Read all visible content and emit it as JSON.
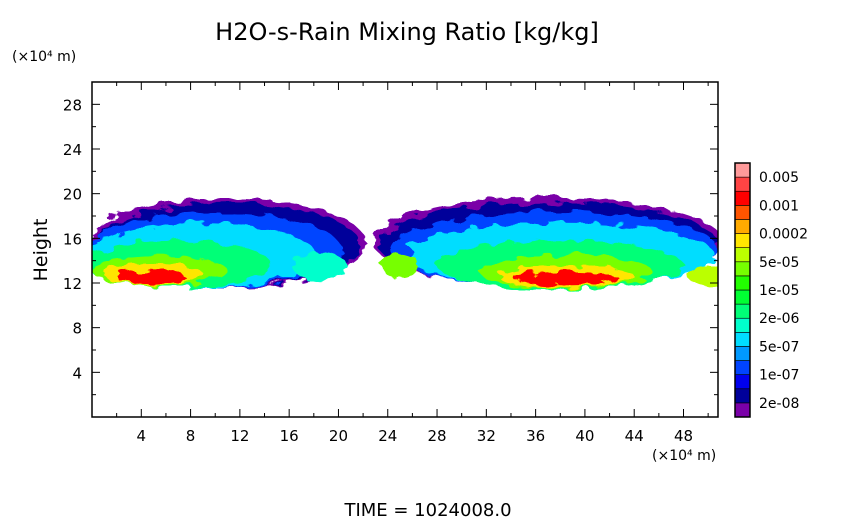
{
  "chart_data": {
    "type": "heatmap",
    "title": "H2O-s-Rain Mixing Ratio [kg/kg]",
    "xlabel": "",
    "ylabel": "Height",
    "x_unit": "(×10⁴ m)",
    "y_unit": "(×10⁴ m)",
    "xlim": [
      0,
      50.8
    ],
    "ylim": [
      0,
      30
    ],
    "x_ticks": [
      4,
      8,
      12,
      16,
      20,
      24,
      28,
      32,
      36,
      40,
      44,
      48
    ],
    "y_ticks": [
      4,
      8,
      12,
      16,
      20,
      24,
      28
    ],
    "grid": false,
    "footer": "TIME = 1024008.0",
    "colorbar": {
      "colors": [
        "#7a00a8",
        "#00009a",
        "#0000ee",
        "#0044ff",
        "#0099ff",
        "#00ddff",
        "#00ffcc",
        "#00ff77",
        "#00ff33",
        "#22ff00",
        "#77ff00",
        "#bbff00",
        "#ffe600",
        "#ffaa00",
        "#ff5500",
        "#ff0000",
        "#ff4444",
        "#ff9a9a"
      ],
      "labels": [
        "2e-08",
        "1e-07",
        "5e-07",
        "2e-06",
        "1e-05",
        "5e-05",
        "0.0002",
        "0.001",
        "0.005"
      ]
    },
    "field_blobs": [
      {
        "x": 11,
        "y": 15.6,
        "rx": 11.2,
        "ry": 4.0,
        "level": 0
      },
      {
        "x": 11,
        "y": 15.4,
        "rx": 10.8,
        "ry": 3.7,
        "level": 1
      },
      {
        "x": 10,
        "y": 15.0,
        "rx": 10.2,
        "ry": 3.4,
        "level": 3
      },
      {
        "x": 9,
        "y": 14.5,
        "rx": 9.2,
        "ry": 2.9,
        "level": 5
      },
      {
        "x": 7,
        "y": 13.7,
        "rx": 7.5,
        "ry": 2.1,
        "level": 7
      },
      {
        "x": 5.5,
        "y": 13.1,
        "rx": 5.5,
        "ry": 1.4,
        "level": 10
      },
      {
        "x": 5,
        "y": 12.8,
        "rx": 4,
        "ry": 1.0,
        "level": 12
      },
      {
        "x": 4.8,
        "y": 12.5,
        "rx": 2.8,
        "ry": 0.6,
        "level": 15
      },
      {
        "x": 37,
        "y": 15.7,
        "rx": 14.2,
        "ry": 4.0,
        "level": 0
      },
      {
        "x": 37,
        "y": 15.5,
        "rx": 13.8,
        "ry": 3.7,
        "level": 1
      },
      {
        "x": 37.5,
        "y": 15.0,
        "rx": 13.3,
        "ry": 3.4,
        "level": 3
      },
      {
        "x": 38,
        "y": 14.5,
        "rx": 12.5,
        "ry": 2.9,
        "level": 5
      },
      {
        "x": 38,
        "y": 13.6,
        "rx": 10,
        "ry": 2.2,
        "level": 7
      },
      {
        "x": 38.5,
        "y": 13.0,
        "rx": 7,
        "ry": 1.5,
        "level": 10
      },
      {
        "x": 38.5,
        "y": 12.6,
        "rx": 5.5,
        "ry": 1.0,
        "level": 12
      },
      {
        "x": 38.5,
        "y": 12.4,
        "rx": 4.3,
        "ry": 0.6,
        "level": 15
      },
      {
        "x": 25,
        "y": 13.6,
        "rx": 1.5,
        "ry": 1.2,
        "level": 10
      },
      {
        "x": 50,
        "y": 12.6,
        "rx": 1.6,
        "ry": 0.9,
        "level": 11
      },
      {
        "x": 18.5,
        "y": 13.5,
        "rx": 2.2,
        "ry": 1.3,
        "level": 6
      }
    ]
  }
}
